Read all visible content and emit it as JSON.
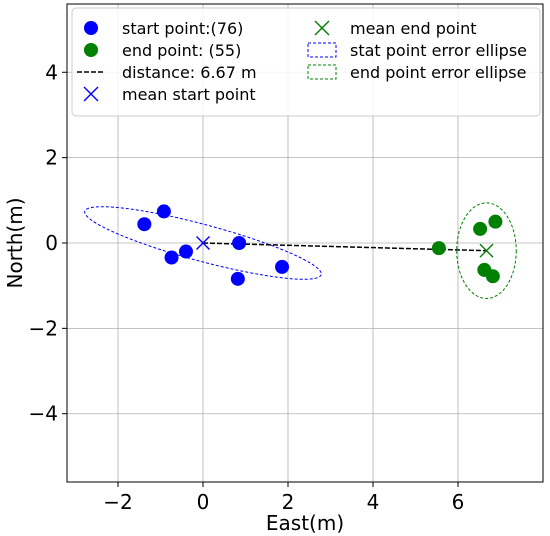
{
  "chart_data": {
    "type": "scatter",
    "xlabel": "East(m)",
    "ylabel": "North(m)",
    "xlim": [
      -3.2,
      8.0
    ],
    "ylim": [
      -5.6,
      5.6
    ],
    "x_ticks": [
      -2,
      0,
      2,
      4,
      6
    ],
    "y_ticks": [
      -4,
      -2,
      0,
      2,
      4
    ],
    "x_tick_labels": [
      "−2",
      "0",
      "2",
      "4",
      "6"
    ],
    "y_tick_labels": [
      "−4",
      "−2",
      "0",
      "2",
      "4"
    ],
    "grid": true,
    "legend_placement": "top",
    "series": [
      {
        "name": "start point:(76)",
        "kind": "points",
        "color": "#0000ff",
        "points": [
          [
            -1.38,
            0.44
          ],
          [
            -0.92,
            0.74
          ],
          [
            -0.74,
            -0.34
          ],
          [
            -0.4,
            -0.2
          ],
          [
            0.85,
            0.0
          ],
          [
            0.82,
            -0.84
          ],
          [
            1.86,
            -0.56
          ]
        ]
      },
      {
        "name": "end point: (55)",
        "kind": "points",
        "color": "#008000",
        "points": [
          [
            5.55,
            -0.12
          ],
          [
            6.52,
            0.33
          ],
          [
            6.88,
            0.5
          ],
          [
            6.62,
            -0.63
          ],
          [
            6.82,
            -0.78
          ]
        ]
      },
      {
        "name": "distance: 6.67 m",
        "kind": "line",
        "color": "#000000",
        "points": [
          [
            0.0,
            0.0
          ],
          [
            6.67,
            -0.18
          ]
        ]
      },
      {
        "name": "mean start point",
        "kind": "marker",
        "color": "#0000ff",
        "points": [
          [
            0.0,
            0.0
          ]
        ]
      },
      {
        "name": "mean end point",
        "kind": "marker",
        "color": "#008000",
        "points": [
          [
            6.67,
            -0.18
          ]
        ]
      },
      {
        "name": "stat point error ellipse",
        "kind": "ellipse",
        "color": "#0000ff",
        "center": [
          0.0,
          0.0
        ],
        "semi_axes": [
          2.88,
          0.43
        ],
        "angle_deg": -15
      },
      {
        "name": "end point error ellipse",
        "kind": "ellipse",
        "color": "#008000",
        "center": [
          6.67,
          -0.18
        ],
        "semi_axes": [
          0.7,
          1.12
        ],
        "angle_deg": 0
      }
    ]
  }
}
